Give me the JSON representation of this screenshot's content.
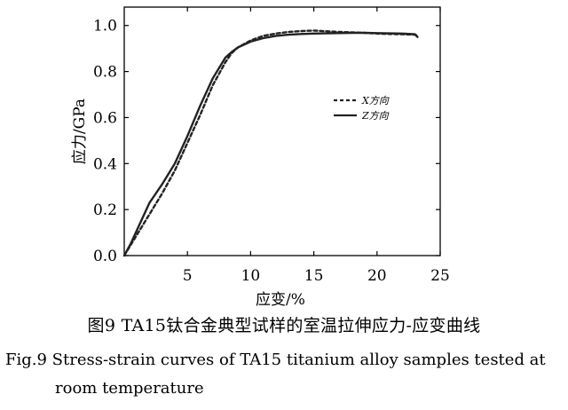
{
  "chart_data": {
    "type": "line",
    "title": "",
    "xlabel": "应变/%",
    "ylabel": "应力/GPa",
    "xlim": [
      0,
      25
    ],
    "ylim": [
      0,
      1.08
    ],
    "xticks": [
      5,
      10,
      15,
      20,
      25
    ],
    "yticks": [
      0.0,
      0.2,
      0.4,
      0.6,
      0.8,
      1.0
    ],
    "grid": false,
    "legend_position": "center-right",
    "series": [
      {
        "name": "X方向",
        "style": "dashed",
        "x": [
          0,
          1,
          2,
          3,
          4,
          5,
          6,
          7,
          7.5,
          8,
          8.5,
          9,
          10,
          11,
          12,
          13,
          14,
          15,
          16,
          17,
          18,
          19,
          20,
          21,
          22,
          23,
          23.2
        ],
        "y": [
          0,
          0.09,
          0.18,
          0.27,
          0.37,
          0.49,
          0.61,
          0.74,
          0.79,
          0.84,
          0.88,
          0.905,
          0.935,
          0.955,
          0.965,
          0.972,
          0.976,
          0.978,
          0.975,
          0.972,
          0.97,
          0.968,
          0.965,
          0.963,
          0.962,
          0.96,
          0.955
        ]
      },
      {
        "name": "Z方向",
        "style": "solid",
        "x": [
          0,
          0.5,
          1,
          2,
          2.5,
          3,
          4,
          5,
          6,
          7,
          8,
          8.5,
          9,
          10,
          11,
          12,
          13,
          14,
          15,
          16,
          17,
          18,
          19,
          20,
          21,
          22,
          23,
          23.2
        ],
        "y": [
          0,
          0.05,
          0.11,
          0.23,
          0.27,
          0.31,
          0.4,
          0.52,
          0.65,
          0.77,
          0.86,
          0.885,
          0.905,
          0.93,
          0.945,
          0.955,
          0.96,
          0.963,
          0.965,
          0.966,
          0.967,
          0.968,
          0.968,
          0.967,
          0.966,
          0.965,
          0.962,
          0.95
        ]
      }
    ]
  },
  "caption": {
    "cn": "图9 TA15钛合金典型试样的室温拉伸应力-应变曲线",
    "en_line1": "Fig.9  Stress-strain curves of TA15 titanium alloy samples tested at",
    "en_line2": "room temperature"
  }
}
